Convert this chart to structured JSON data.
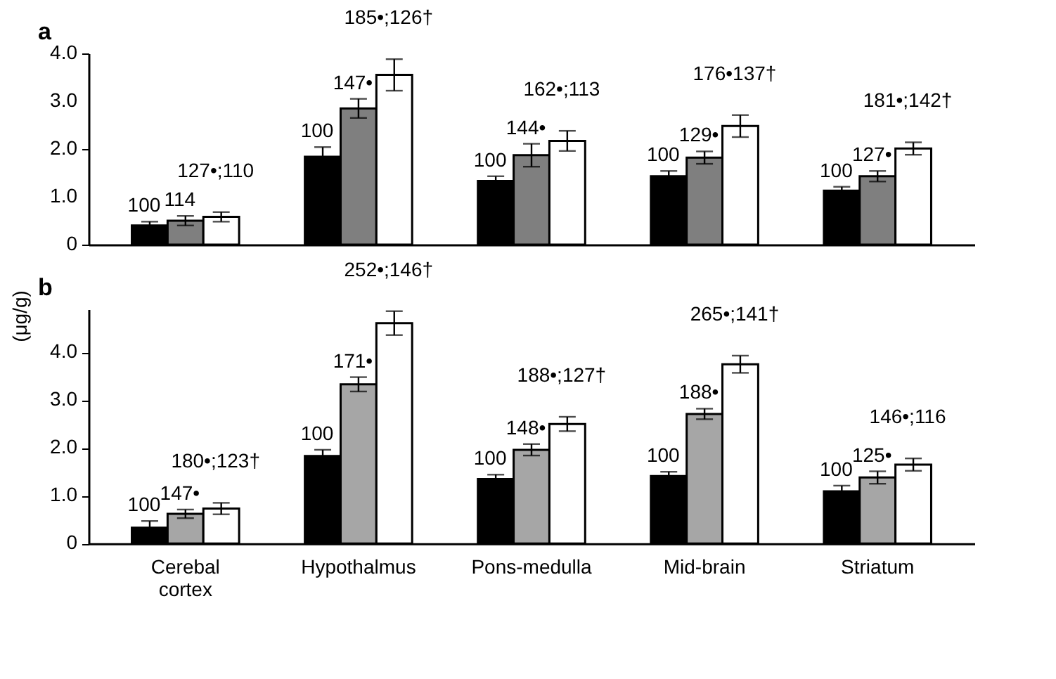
{
  "chart_data": [
    {
      "type": "bar",
      "title": "a",
      "ylabel": "(μg/g)",
      "categories": [
        null,
        null,
        null,
        null,
        null
      ],
      "series": [
        {
          "color": "#000000",
          "values": [
            0.4,
            1.84,
            1.33,
            1.43,
            1.13
          ],
          "errors": [
            0.08,
            0.2,
            0.1,
            0.11,
            0.08
          ]
        },
        {
          "color": "#7f7f7f",
          "values": [
            0.5,
            2.85,
            1.87,
            1.82,
            1.43
          ],
          "errors": [
            0.1,
            0.2,
            0.24,
            0.13,
            0.11
          ]
        },
        {
          "color": "#ffffff",
          "values": [
            0.58,
            3.55,
            2.17,
            2.48,
            2.01
          ],
          "errors": [
            0.1,
            0.33,
            0.21,
            0.23,
            0.13
          ]
        }
      ],
      "annotations": [
        "100",
        "114",
        "127•;110",
        "100",
        "147•",
        "185•;126†",
        "100",
        "144•",
        "162•;113",
        "100",
        "129•",
        "176•137†",
        "100",
        "127•",
        "181•;142†"
      ],
      "ylim": [
        0,
        4.0
      ],
      "yticks": [
        0,
        {
          "value": 1,
          "label": "1.0"
        },
        {
          "value": 2,
          "label": "2.0"
        },
        {
          "value": 3,
          "label": "3.0"
        },
        {
          "value": 4,
          "label": "4.0"
        }
      ],
      "tick_labels": "y"
    },
    {
      "type": "bar",
      "title": "b",
      "categories": [
        "Cerebal cortex",
        "Hypothalmus",
        "Pons-medulla",
        "Mid-brain",
        "Striatum"
      ],
      "series": [
        {
          "color": "#000000",
          "values": [
            0.33,
            1.83,
            1.35,
            1.41,
            1.09
          ],
          "errors": [
            0.14,
            0.13,
            0.09,
            0.09,
            0.12
          ]
        },
        {
          "color": "#a6a6a6",
          "values": [
            0.62,
            3.33,
            1.96,
            2.71,
            1.38
          ],
          "errors": [
            0.09,
            0.15,
            0.12,
            0.11,
            0.13
          ]
        },
        {
          "color": "#ffffff",
          "values": [
            0.73,
            4.61,
            2.5,
            3.75,
            1.65
          ],
          "errors": [
            0.12,
            0.25,
            0.15,
            0.18,
            0.13
          ]
        }
      ],
      "annotations": [
        "100",
        "147•",
        "180•;123†",
        "100",
        "171•",
        "252•;146†",
        "100",
        "148•",
        "188•;127†",
        "100",
        "188•",
        "265•;141†",
        "100",
        "125•",
        "146•;116"
      ],
      "ylim": [
        0,
        4.9
      ],
      "yticks": [
        0,
        {
          "value": 1,
          "label": "1.0"
        },
        {
          "value": 2,
          "label": "2.0"
        },
        {
          "value": 3,
          "label": "3.0"
        },
        {
          "value": 4,
          "label": "4.0"
        }
      ]
    }
  ]
}
